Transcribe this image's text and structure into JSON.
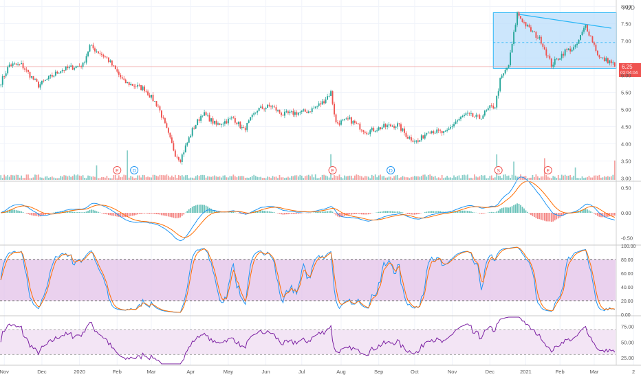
{
  "symbol_currency": "AUD",
  "last_price": "6.25",
  "countdown": "02:04:04",
  "colors": {
    "up": "#26a69a",
    "down": "#ef5350",
    "macd_line": "#2196f3",
    "signal_line": "#ff6d00",
    "stoch_k": "#2196f3",
    "stoch_d": "#ff6d00",
    "rsi_line": "#7b1fa2",
    "stoch_band": "#e1bee7",
    "rsi_band": "#f3e5f5",
    "box_fill": "#bbdefb",
    "box_stroke": "#29b6f6",
    "price_line": "#ef9a9a"
  },
  "price_axis": {
    "ticks": [
      "3.00",
      "3.50",
      "4.00",
      "4.50",
      "5.00",
      "5.50",
      "6.00",
      "6.50",
      "7.00",
      "7.50",
      "8.00"
    ]
  },
  "macd_axis": {
    "ticks": [
      "0.50",
      "0.00",
      "-0.50"
    ]
  },
  "stoch_axis": {
    "ticks": [
      "100.00",
      "80.00",
      "60.00",
      "40.00",
      "20.00",
      "0.00"
    ]
  },
  "rsi_axis": {
    "ticks": [
      "75.00",
      "50.00",
      "25.00"
    ]
  },
  "time_axis": {
    "labels": [
      {
        "label": "Nov",
        "i": 2
      },
      {
        "label": "Dec",
        "i": 24
      },
      {
        "label": "2020",
        "i": 46
      },
      {
        "label": "Feb",
        "i": 68
      },
      {
        "label": "Mar",
        "i": 88
      },
      {
        "label": "Apr",
        "i": 111
      },
      {
        "label": "May",
        "i": 133
      },
      {
        "label": "Jun",
        "i": 155
      },
      {
        "label": "Jul",
        "i": 176
      },
      {
        "label": "Aug",
        "i": 199
      },
      {
        "label": "Sep",
        "i": 221
      },
      {
        "label": "Oct",
        "i": 242
      },
      {
        "label": "Nov",
        "i": 264
      },
      {
        "label": "Dec",
        "i": 286
      },
      {
        "label": "2021",
        "i": 307
      },
      {
        "label": "Feb",
        "i": 327
      },
      {
        "label": "Mar",
        "i": 347
      },
      {
        "label": "2",
        "i": 370
      }
    ]
  },
  "events": [
    {
      "label": "E",
      "i": 68
    },
    {
      "label": "D",
      "i": 78
    },
    {
      "label": "E",
      "i": 194
    },
    {
      "label": "D",
      "i": 228
    },
    {
      "label": "S",
      "i": 291
    },
    {
      "label": "E",
      "i": 320
    }
  ],
  "chart_data": {
    "type": "candlestick",
    "bars_total": 360,
    "price_range": [
      2.95,
      8.05
    ],
    "anchors": [
      [
        0,
        5.8
      ],
      [
        5,
        6.3
      ],
      [
        12,
        6.3
      ],
      [
        22,
        5.7
      ],
      [
        35,
        6.15
      ],
      [
        48,
        6.3
      ],
      [
        52,
        6.85
      ],
      [
        62,
        6.5
      ],
      [
        72,
        5.8
      ],
      [
        84,
        5.6
      ],
      [
        92,
        5.1
      ],
      [
        97,
        4.4
      ],
      [
        102,
        3.7
      ],
      [
        105,
        3.55
      ],
      [
        112,
        4.4
      ],
      [
        118,
        4.9
      ],
      [
        126,
        4.55
      ],
      [
        136,
        4.75
      ],
      [
        142,
        4.4
      ],
      [
        150,
        5.0
      ],
      [
        158,
        5.1
      ],
      [
        165,
        4.85
      ],
      [
        172,
        4.9
      ],
      [
        180,
        4.95
      ],
      [
        188,
        5.2
      ],
      [
        193,
        5.5
      ],
      [
        196,
        4.6
      ],
      [
        204,
        4.7
      ],
      [
        214,
        4.35
      ],
      [
        224,
        4.5
      ],
      [
        232,
        4.55
      ],
      [
        238,
        4.2
      ],
      [
        244,
        4.05
      ],
      [
        250,
        4.4
      ],
      [
        260,
        4.3
      ],
      [
        266,
        4.65
      ],
      [
        272,
        4.85
      ],
      [
        280,
        4.75
      ],
      [
        286,
        5.05
      ],
      [
        289,
        5.1
      ],
      [
        292,
        5.85
      ],
      [
        297,
        6.3
      ],
      [
        302,
        7.8
      ],
      [
        308,
        7.4
      ],
      [
        316,
        7.0
      ],
      [
        322,
        6.3
      ],
      [
        330,
        6.7
      ],
      [
        336,
        6.8
      ],
      [
        342,
        7.45
      ],
      [
        346,
        7.0
      ],
      [
        350,
        6.5
      ],
      [
        356,
        6.4
      ],
      [
        360,
        6.25
      ]
    ],
    "channel": {
      "box_start": 288,
      "box_end": 360,
      "box_top": 7.82,
      "box_bottom": 6.2,
      "mid": 6.95,
      "trend_from": [
        302,
        7.78
      ],
      "trend_to": [
        357,
        7.37
      ]
    },
    "stoch_levels": {
      "upper": 80,
      "lower": 20
    },
    "rsi_levels": {
      "upper": 70,
      "lower": 30
    }
  }
}
